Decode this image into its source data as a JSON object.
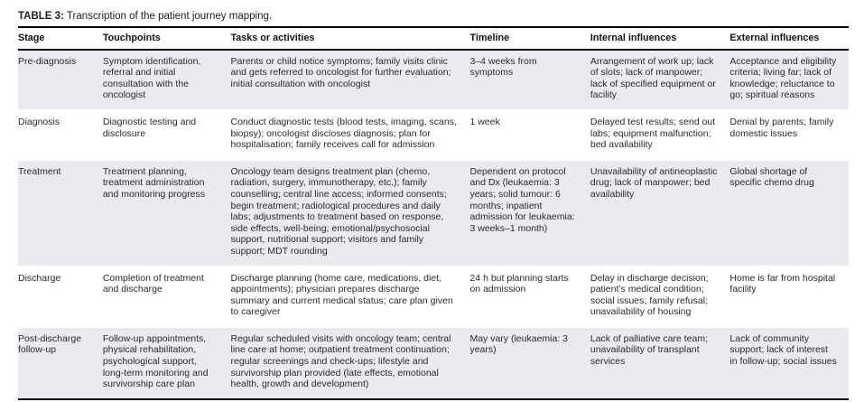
{
  "title": {
    "label": "TABLE 3:",
    "text": "Transcription of the patient journey mapping."
  },
  "colors": {
    "row_shade": "#e9ebee",
    "rule": "#000000",
    "text": "#2a2a2a"
  },
  "table": {
    "columns": [
      "Stage",
      "Touchpoints",
      "Tasks or activities",
      "Timeline",
      "Internal influences",
      "External influences"
    ],
    "rows": [
      {
        "stage": "Pre-diagnosis",
        "touchpoints": "Symptom identification, referral and initial consultation with the oncologist",
        "tasks": "Parents or child notice symptoms; family visits clinic and gets referred to oncologist for further evaluation; initial consultation with oncologist",
        "timeline": "3–4 weeks from symptoms",
        "internal": "Arrangement of work up; lack of slots; lack of manpower; lack of specified equipment or facility",
        "external": "Acceptance and eligibility criteria; living far; lack of knowledge; reluctance to go; spiritual reasons"
      },
      {
        "stage": "Diagnosis",
        "touchpoints": "Diagnostic testing and disclosure",
        "tasks": "Conduct diagnostic tests (blood tests, imaging, scans, biopsy); oncologist discloses diagnosis; plan for hospitalisation; family receives call for admission",
        "timeline": "1 week",
        "internal": "Delayed test results; send out labs; equipment malfunction; bed availability",
        "external": "Denial by parents; family domestic issues"
      },
      {
        "stage": "Treatment",
        "touchpoints": "Treatment planning, treatment administration and monitoring progress",
        "tasks": "Oncology team designs treatment plan (chemo, radiation, surgery, immunotherapy, etc.); family counselling; central line access; informed consents; begin treatment; radiological procedures and daily labs; adjustments to treatment based on response, side effects, well-being; emotional/psychosocial support, nutritional support; visitors and family support; MDT rounding",
        "timeline": "Dependent on protocol and Dx (leukaemia: 3 years; solid tumour: 6 months; inpatient admission for leukaemia: 3 weeks–1 month)",
        "internal": "Unavailability of antineoplastic drug; lack of manpower; bed availability",
        "external": "Global shortage of specific chemo drug"
      },
      {
        "stage": "Discharge",
        "touchpoints": "Completion of treatment and discharge",
        "tasks": "Discharge planning (home care, medications, diet, appointments); physician prepares discharge summary and current medical status; care plan given to caregiver",
        "timeline": "24 h but planning starts on admission",
        "internal": "Delay in discharge decision; patient’s medical condition; social issues; family refusal; unavailability of housing",
        "external": "Home is far from hospital facility"
      },
      {
        "stage": "Post-discharge follow-up",
        "touchpoints": "Follow-up appointments, physical rehabilitation, psychological support, long-term monitoring and survivorship care plan",
        "tasks": "Regular scheduled visits with oncology team; central line care at home; outpatient treatment continuation; regular screenings and check-ups; lifestyle and survivorship plan provided (late effects, emotional health, growth and development)",
        "timeline": "May vary (leukaemia: 3 years)",
        "internal": "Lack of palliative care team; unavailability of transplant services",
        "external": "Lack of community support; lack of interest in follow-up; social issues"
      }
    ]
  }
}
